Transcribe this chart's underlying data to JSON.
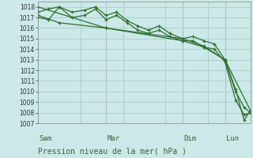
{
  "bg_color": "#cce8e8",
  "grid_color": "#aacccc",
  "line_color": "#2d6e2d",
  "title": "Pression niveau de la mer( hPa )",
  "ylim": [
    1007,
    1018.5
  ],
  "yticks": [
    1007,
    1008,
    1009,
    1010,
    1011,
    1012,
    1013,
    1014,
    1015,
    1016,
    1017,
    1018
  ],
  "x_tick_labels": [
    "Sam",
    "Mar",
    "Dim",
    "Lun"
  ],
  "x_tick_positions": [
    0.0,
    0.32,
    0.68,
    0.88
  ],
  "series": [
    {
      "x": [
        0.0,
        0.05,
        0.1,
        0.16,
        0.22,
        0.27,
        0.32,
        0.37,
        0.42,
        0.47,
        0.52,
        0.57,
        0.62,
        0.68,
        0.73,
        0.78,
        0.83,
        0.88,
        0.93,
        0.97,
        1.0
      ],
      "y": [
        1017.5,
        1017.8,
        1018.0,
        1017.5,
        1017.7,
        1018.0,
        1017.2,
        1017.5,
        1016.7,
        1016.2,
        1015.8,
        1016.2,
        1015.5,
        1015.0,
        1015.2,
        1014.8,
        1014.5,
        1013.0,
        1010.0,
        1008.5,
        1008.0
      ]
    },
    {
      "x": [
        0.0,
        0.05,
        0.1,
        0.16,
        0.22,
        0.27,
        0.32,
        0.37,
        0.42,
        0.47,
        0.52,
        0.57,
        0.62,
        0.68,
        0.73,
        0.78,
        0.83,
        0.88,
        0.93,
        0.97,
        1.0
      ],
      "y": [
        1017.0,
        1016.8,
        1018.0,
        1017.0,
        1017.2,
        1017.8,
        1016.8,
        1017.2,
        1016.5,
        1015.8,
        1015.5,
        1015.8,
        1015.2,
        1014.8,
        1014.8,
        1014.2,
        1014.0,
        1012.8,
        1009.2,
        1007.8,
        1008.0
      ]
    },
    {
      "x": [
        0.0,
        0.32,
        0.68,
        0.78,
        0.88,
        1.0
      ],
      "y": [
        1018.0,
        1016.0,
        1015.0,
        1014.3,
        1013.0,
        1008.2
      ]
    },
    {
      "x": [
        0.0,
        0.1,
        0.32,
        0.68,
        0.78,
        0.88,
        0.93,
        0.97,
        1.0
      ],
      "y": [
        1017.2,
        1016.5,
        1016.0,
        1014.8,
        1014.2,
        1013.0,
        1010.2,
        1007.3,
        1008.2
      ]
    }
  ]
}
